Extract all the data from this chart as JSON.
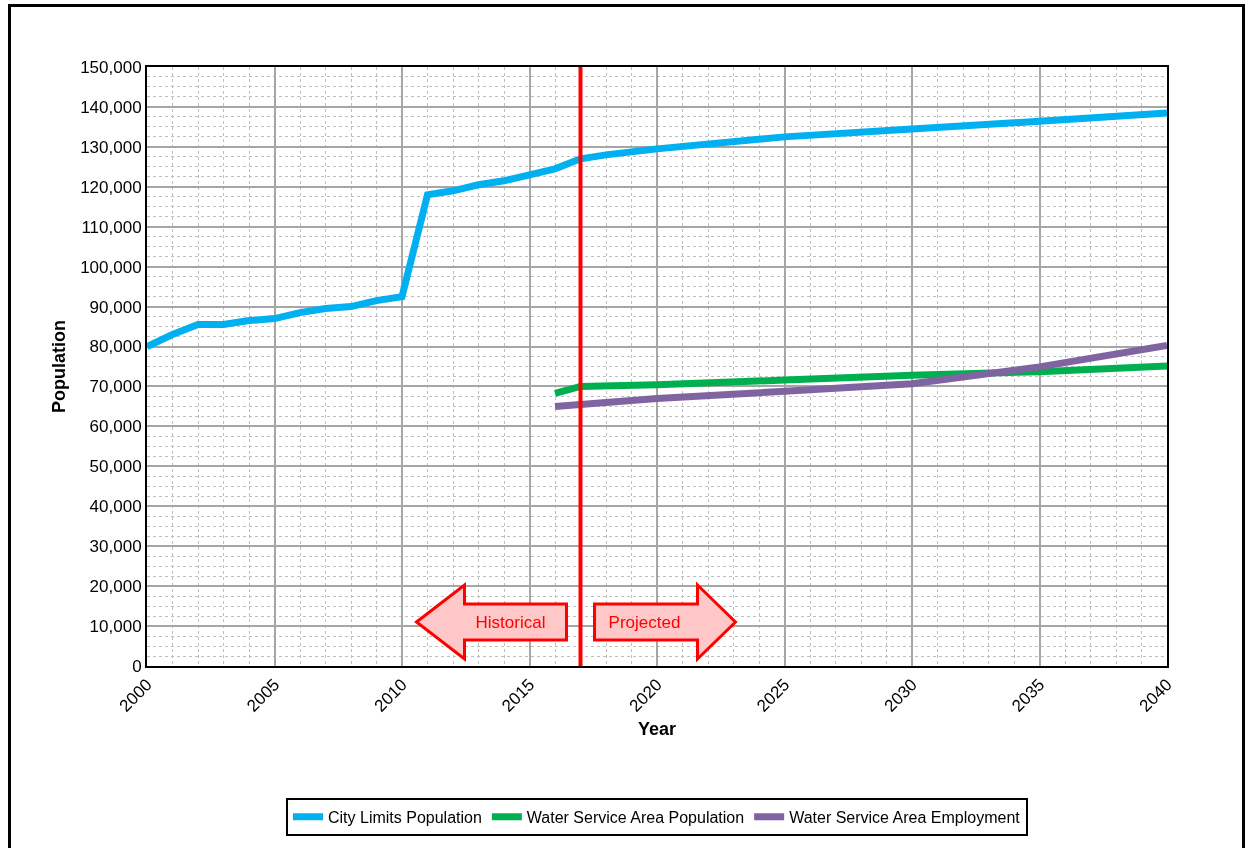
{
  "chart_data": {
    "type": "line",
    "xlabel": "Year",
    "ylabel": "Population",
    "xlim": [
      2000,
      2040
    ],
    "xticks": [
      2000,
      2005,
      2010,
      2015,
      2020,
      2025,
      2030,
      2035,
      2040
    ],
    "ylim": [
      0,
      150000
    ],
    "yticks": [
      0,
      {
        "value": 10000,
        "label": "10,000"
      },
      {
        "value": 20000,
        "label": "20,000"
      },
      {
        "value": 30000,
        "label": "30,000"
      },
      {
        "value": 40000,
        "label": "40,000"
      },
      {
        "value": 50000,
        "label": "50,000"
      },
      {
        "value": 60000,
        "label": "60,000"
      },
      {
        "value": 70000,
        "label": "70,000"
      },
      {
        "value": 80000,
        "label": "80,000"
      },
      {
        "value": 90000,
        "label": "90,000"
      },
      {
        "value": 100000,
        "label": "100,000"
      },
      {
        "value": 110000,
        "label": "110,000"
      },
      {
        "value": 120000,
        "label": "120,000"
      },
      {
        "value": 130000,
        "label": "130,000"
      },
      {
        "value": 140000,
        "label": "140,000"
      },
      {
        "value": 150000,
        "label": "150,000"
      }
    ],
    "grid": true,
    "legend": "bottom",
    "marker": "none",
    "line_style": "solid",
    "series": [
      {
        "name": "City Limits Population",
        "color": "#00b0f0",
        "x": [
          2000,
          2001,
          2002,
          2003,
          2004,
          2005,
          2006,
          2007,
          2008,
          2009,
          2010,
          2011,
          2012,
          2013,
          2014,
          2015,
          2016,
          2017,
          2018,
          2020,
          2025,
          2030,
          2035,
          2040
        ],
        "values": [
          80000,
          83000,
          85500,
          85500,
          86500,
          87000,
          88500,
          89500,
          90000,
          91500,
          92500,
          118000,
          119000,
          120500,
          121500,
          123000,
          124500,
          127000,
          128000,
          129500,
          132500,
          134500,
          136400,
          138500
        ]
      },
      {
        "name": "Water Service Area Population",
        "color": "#00b050",
        "x": [
          2016,
          2017,
          2020,
          2025,
          2030,
          2035,
          2040
        ],
        "values": [
          68300,
          70000,
          70400,
          71600,
          72800,
          73700,
          75100
        ]
      },
      {
        "name": "Water Service Area Employment",
        "color": "#8064a2",
        "x": [
          2016,
          2020,
          2025,
          2030,
          2035,
          2040
        ],
        "values": [
          65000,
          67000,
          68800,
          70700,
          74900,
          80300
        ]
      }
    ],
    "ref_lines": [
      {
        "axis": "x",
        "value": 2017,
        "color": "#ff0000"
      }
    ],
    "annotations": [
      "Historical",
      "Projected"
    ]
  }
}
